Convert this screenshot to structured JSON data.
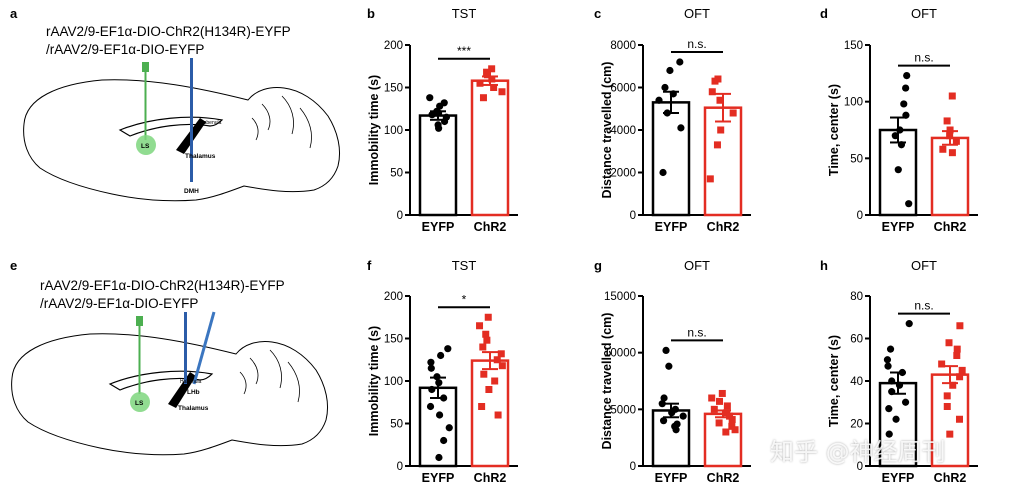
{
  "colors": {
    "eyfp": "#000000",
    "chr2": "#e32d22",
    "ls": "#7ed67e",
    "fiber": "#2b5ca8",
    "fiber_lhb": "#3b76c0",
    "brain": "#000000"
  },
  "watermark": "知乎 @神经周刊",
  "schematics": [
    {
      "label": "a",
      "virus_line1": "rAAV2/9-EF1α-DIO-ChR2(H134R)-EYFP",
      "virus_line2": "/rAAV2/9-EF1α-DIO-EYFP",
      "ls_label": "LS",
      "thalamus_label": "Thalamus",
      "target_label": "DMH",
      "habenula_label": "Habenula"
    },
    {
      "label": "e",
      "virus_line1": "rAAV2/9-EF1α-DIO-ChR2(H134R)-EYFP",
      "virus_line2": "/rAAV2/9-EF1α-DIO-EYFP",
      "ls_label": "LS",
      "thalamus_label": "Thalamus",
      "target_label": "LHb",
      "habenula_label": "Habenula"
    }
  ],
  "chart_data": [
    {
      "panel": "b",
      "type": "bar",
      "title": "TST",
      "ylabel": "Immobility time (s)",
      "ylim": [
        0,
        200
      ],
      "yticks": [
        0,
        50,
        100,
        150,
        200
      ],
      "categories": [
        "EYFP",
        "ChR2"
      ],
      "significance": "***",
      "series": [
        {
          "name": "EYFP",
          "mean": 117,
          "sem": 5,
          "points": [
            138,
            132,
            128,
            122,
            118,
            115,
            110,
            106,
            102,
            120
          ]
        },
        {
          "name": "ChR2",
          "mean": 158,
          "sem": 5,
          "points": [
            172,
            168,
            165,
            160,
            155,
            150,
            145,
            138
          ]
        }
      ]
    },
    {
      "panel": "c",
      "type": "bar",
      "title": "OFT",
      "ylabel": "Distance travelled (cm)",
      "ylim": [
        0,
        8000
      ],
      "yticks": [
        0,
        2000,
        4000,
        6000,
        8000
      ],
      "categories": [
        "EYFP",
        "ChR2"
      ],
      "significance": "n.s.",
      "series": [
        {
          "name": "EYFP",
          "mean": 5300,
          "sem": 500,
          "points": [
            7200,
            6800,
            6000,
            5700,
            5400,
            4800,
            4100,
            2000
          ]
        },
        {
          "name": "ChR2",
          "mean": 5050,
          "sem": 650,
          "points": [
            6400,
            6300,
            5800,
            5400,
            4800,
            4000,
            3300,
            1700
          ]
        }
      ]
    },
    {
      "panel": "d",
      "type": "bar",
      "title": "OFT",
      "ylabel": "Time, center (s)",
      "ylim": [
        0,
        150
      ],
      "yticks": [
        0,
        50,
        100,
        150
      ],
      "categories": [
        "EYFP",
        "ChR2"
      ],
      "significance": "n.s.",
      "series": [
        {
          "name": "EYFP",
          "mean": 75,
          "sem": 11,
          "points": [
            123,
            112,
            98,
            88,
            75,
            70,
            62,
            40,
            10
          ]
        },
        {
          "name": "ChR2",
          "mean": 68,
          "sem": 6,
          "points": [
            105,
            83,
            75,
            70,
            65,
            58,
            55
          ]
        }
      ]
    },
    {
      "panel": "f",
      "type": "bar",
      "title": "TST",
      "ylabel": "Immobility time (s)",
      "ylim": [
        0,
        200
      ],
      "yticks": [
        0,
        50,
        100,
        150,
        200
      ],
      "categories": [
        "EYFP",
        "ChR2"
      ],
      "significance": "*",
      "series": [
        {
          "name": "EYFP",
          "mean": 92,
          "sem": 12,
          "points": [
            138,
            130,
            122,
            115,
            105,
            98,
            90,
            80,
            70,
            60,
            45,
            30,
            10
          ]
        },
        {
          "name": "ChR2",
          "mean": 124,
          "sem": 10,
          "points": [
            175,
            165,
            155,
            148,
            140,
            132,
            125,
            118,
            108,
            100,
            90,
            70,
            60
          ]
        }
      ]
    },
    {
      "panel": "g",
      "type": "bar",
      "title": "OFT",
      "ylabel": "Distance travelled (cm)",
      "ylim": [
        0,
        15000
      ],
      "yticks": [
        0,
        5000,
        10000,
        15000
      ],
      "categories": [
        "EYFP",
        "ChR2"
      ],
      "significance": "n.s.",
      "series": [
        {
          "name": "EYFP",
          "mean": 4900,
          "sem": 600,
          "points": [
            10200,
            8800,
            6000,
            5500,
            5000,
            4700,
            4400,
            4000,
            3700,
            3500,
            3200
          ]
        },
        {
          "name": "ChR2",
          "mean": 4600,
          "sem": 300,
          "points": [
            6400,
            6000,
            5700,
            5300,
            5000,
            4700,
            4400,
            4100,
            3800,
            3500,
            3200,
            3000
          ]
        }
      ]
    },
    {
      "panel": "h",
      "type": "bar",
      "title": "OFT",
      "ylabel": "Time, center (s)",
      "ylim": [
        0,
        80
      ],
      "yticks": [
        0,
        20,
        40,
        60,
        80
      ],
      "categories": [
        "EYFP",
        "ChR2"
      ],
      "significance": "n.s.",
      "series": [
        {
          "name": "EYFP",
          "mean": 39,
          "sem": 5,
          "points": [
            67,
            55,
            50,
            47,
            44,
            40,
            38,
            35,
            30,
            27,
            22,
            15
          ]
        },
        {
          "name": "ChR2",
          "mean": 43,
          "sem": 4,
          "points": [
            66,
            58,
            55,
            52,
            48,
            45,
            42,
            38,
            33,
            28,
            22,
            15
          ]
        }
      ]
    }
  ]
}
